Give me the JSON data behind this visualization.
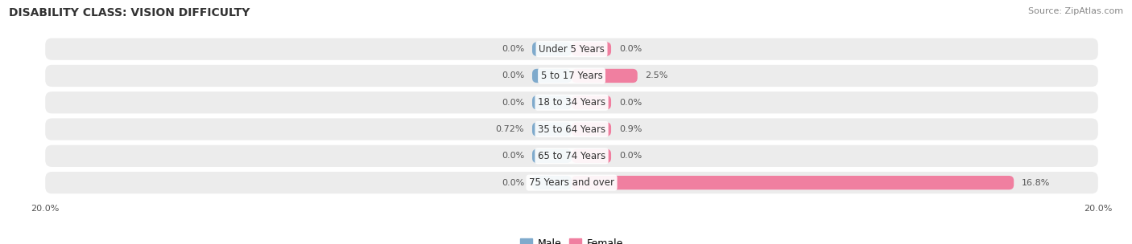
{
  "title": "DISABILITY CLASS: VISION DIFFICULTY",
  "source": "Source: ZipAtlas.com",
  "categories": [
    "Under 5 Years",
    "5 to 17 Years",
    "18 to 34 Years",
    "35 to 64 Years",
    "65 to 74 Years",
    "75 Years and over"
  ],
  "male_values": [
    0.0,
    0.0,
    0.0,
    0.72,
    0.0,
    0.0
  ],
  "female_values": [
    0.0,
    2.5,
    0.0,
    0.9,
    0.0,
    16.8
  ],
  "male_labels": [
    "0.0%",
    "0.0%",
    "0.0%",
    "0.72%",
    "0.0%",
    "0.0%"
  ],
  "female_labels": [
    "0.0%",
    "2.5%",
    "0.0%",
    "0.9%",
    "0.0%",
    "16.8%"
  ],
  "male_color": "#7faacc",
  "female_color": "#f07fa0",
  "row_bg_color": "#ececec",
  "axis_limit": 20.0,
  "min_bar_width": 1.5,
  "title_fontsize": 10,
  "label_fontsize": 8,
  "category_fontsize": 8.5,
  "legend_fontsize": 9,
  "source_fontsize": 8
}
